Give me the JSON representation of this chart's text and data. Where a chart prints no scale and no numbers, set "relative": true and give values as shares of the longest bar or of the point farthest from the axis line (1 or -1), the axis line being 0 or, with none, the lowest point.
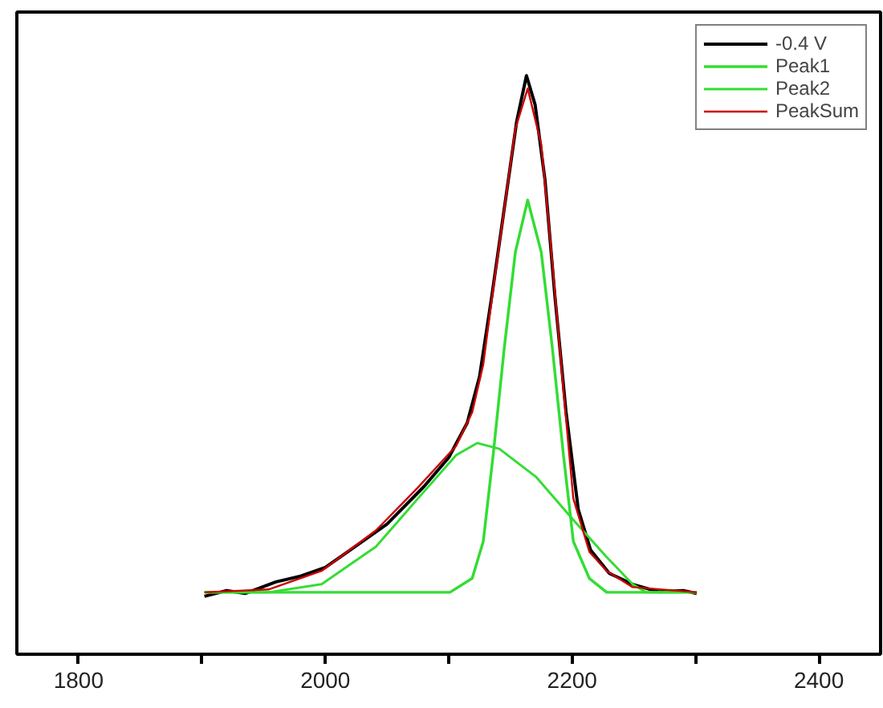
{
  "chart_data": {
    "type": "line",
    "relative": true,
    "legend": "top right",
    "grid": false,
    "xlim": [
      1750,
      2450
    ],
    "xticks": [
      1800,
      {
        "value": 1900,
        "label": null
      },
      2000,
      {
        "value": 2100,
        "label": null
      },
      2200,
      {
        "value": 2300,
        "label": null
      },
      2400
    ],
    "series": [
      {
        "name": "-0.4 V",
        "color": "#000000",
        "x": [
          1902,
          1920,
          1935,
          1960,
          1980,
          2000,
          2020,
          2050,
          2080,
          2100,
          2115,
          2125,
          2135,
          2145,
          2155,
          2163,
          2170,
          2178,
          2186,
          2195,
          2205,
          2215,
          2230,
          2250,
          2270,
          2290,
          2301
        ],
        "values": [
          0.1,
          0.11,
          0.105,
          0.125,
          0.135,
          0.15,
          0.18,
          0.225,
          0.29,
          0.34,
          0.4,
          0.48,
          0.62,
          0.77,
          0.92,
          1.0,
          0.95,
          0.82,
          0.62,
          0.42,
          0.25,
          0.18,
          0.14,
          0.12,
          0.108,
          0.11,
          0.105
        ]
      },
      {
        "name": "Peak1",
        "color": "#33dd33",
        "x": [
          1902,
          2101,
          2119,
          2128,
          2136,
          2145,
          2154,
          2164,
          2175,
          2184,
          2193,
          2201,
          2214,
          2228,
          2301
        ],
        "values": [
          0.107,
          0.107,
          0.131,
          0.195,
          0.344,
          0.529,
          0.695,
          0.785,
          0.695,
          0.529,
          0.344,
          0.195,
          0.131,
          0.107,
          0.107
        ]
      },
      {
        "name": "Peak2",
        "color": "#33dd33",
        "x": [
          1902,
          1954,
          1997,
          2041,
          2075,
          2106,
          2123,
          2141,
          2171,
          2201,
          2228,
          2249,
          2260,
          2301
        ],
        "values": [
          0.107,
          0.107,
          0.121,
          0.186,
          0.269,
          0.344,
          0.365,
          0.355,
          0.306,
          0.232,
          0.168,
          0.121,
          0.107,
          0.107
        ]
      },
      {
        "name": "PeakSum",
        "color": "#cc0000",
        "x": [
          1902,
          1954,
          1997,
          2041,
          2075,
          2106,
          2119,
          2128,
          2136,
          2145,
          2154,
          2164,
          2175,
          2184,
          2193,
          2201,
          2214,
          2228,
          2249,
          2301
        ],
        "values": [
          0.107,
          0.112,
          0.144,
          0.214,
          0.288,
          0.36,
          0.418,
          0.501,
          0.631,
          0.769,
          0.908,
          0.978,
          0.881,
          0.677,
          0.455,
          0.269,
          0.177,
          0.144,
          0.116,
          0.107
        ]
      }
    ]
  }
}
